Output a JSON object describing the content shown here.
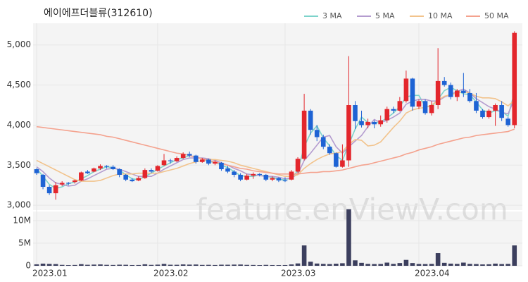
{
  "chart_data": {
    "type": "candlestick",
    "title": "에이에프더블류(312610)",
    "watermark": "feature.enViewV.com",
    "up_color": "#e3262c",
    "down_color": "#1e63d4",
    "xticks": [
      {
        "value": 0,
        "label": "2023.01"
      },
      {
        "value": 19,
        "label": "2023.02"
      },
      {
        "value": 39,
        "label": "2023.03"
      },
      {
        "value": 60,
        "label": "2023.04"
      }
    ],
    "ylim": [
      2940,
      5270
    ],
    "yticks": [
      {
        "value": 3000,
        "label": "3,000"
      },
      {
        "value": 3500,
        "label": "3,500"
      },
      {
        "value": 4000,
        "label": "4,000"
      },
      {
        "value": 4500,
        "label": "4,500"
      },
      {
        "value": 5000,
        "label": "5,000"
      }
    ],
    "open": [
      3450,
      3380,
      3230,
      3150,
      3260,
      3280,
      3290,
      3310,
      3420,
      3420,
      3460,
      3490,
      3480,
      3450,
      3380,
      3320,
      3310,
      3340,
      3440,
      3430,
      3500,
      3560,
      3550,
      3590,
      3640,
      3620,
      3540,
      3570,
      3520,
      3530,
      3460,
      3420,
      3380,
      3320,
      3370,
      3390,
      3380,
      3320,
      3340,
      3310,
      3320,
      3420,
      3580,
      4180,
      3940,
      3850,
      3730,
      3650,
      3480,
      3560,
      4250,
      4050,
      4000,
      4040,
      4010,
      4060,
      4200,
      4180,
      4300,
      4580,
      4230,
      4300,
      4150,
      4250,
      4550,
      4500,
      4350,
      4430,
      4400,
      4300,
      4180,
      4100,
      4180,
      4250,
      4080,
      4000
    ],
    "high": [
      3460,
      3390,
      3250,
      3290,
      3300,
      3290,
      3320,
      3420,
      3440,
      3470,
      3510,
      3500,
      3500,
      3460,
      3390,
      3340,
      3360,
      3460,
      3460,
      3500,
      3640,
      3580,
      3610,
      3660,
      3670,
      3630,
      3590,
      3580,
      3560,
      3540,
      3490,
      3440,
      3400,
      3390,
      3410,
      3400,
      3390,
      3360,
      3350,
      3350,
      3440,
      3600,
      4390,
      4200,
      4000,
      3880,
      3760,
      3660,
      3760,
      4860,
      4300,
      4180,
      4080,
      4060,
      4120,
      4230,
      4230,
      4350,
      4680,
      4590,
      4320,
      4320,
      4300,
      4960,
      4600,
      4530,
      4450,
      4650,
      4450,
      4400,
      4200,
      4200,
      4270,
      4300,
      4100,
      5170
    ],
    "low": [
      3380,
      3200,
      3130,
      3070,
      3240,
      3250,
      3270,
      3300,
      3390,
      3410,
      3440,
      3460,
      3440,
      3350,
      3300,
      3290,
      3300,
      3330,
      3400,
      3420,
      3490,
      3520,
      3540,
      3580,
      3600,
      3520,
      3530,
      3500,
      3500,
      3430,
      3400,
      3350,
      3300,
      3310,
      3330,
      3360,
      3300,
      3300,
      3290,
      3290,
      3310,
      3400,
      3560,
      3880,
      3800,
      3700,
      3630,
      3470,
      3470,
      3480,
      3950,
      3970,
      3960,
      3960,
      3980,
      4030,
      4150,
      4170,
      4280,
      4180,
      4200,
      4130,
      4120,
      4200,
      4480,
      4320,
      4300,
      4350,
      4280,
      4150,
      4080,
      4080,
      3990,
      4050,
      3980,
      3960
    ],
    "close": [
      3400,
      3230,
      3150,
      3250,
      3280,
      3270,
      3310,
      3410,
      3400,
      3460,
      3490,
      3480,
      3450,
      3380,
      3320,
      3300,
      3340,
      3440,
      3420,
      3490,
      3560,
      3550,
      3590,
      3640,
      3620,
      3540,
      3570,
      3520,
      3540,
      3450,
      3420,
      3380,
      3320,
      3370,
      3390,
      3380,
      3320,
      3340,
      3310,
      3300,
      3420,
      3580,
      4180,
      3940,
      3850,
      3730,
      3650,
      3480,
      3560,
      4250,
      4050,
      4000,
      4040,
      4010,
      4060,
      4200,
      4180,
      4300,
      4580,
      4230,
      4300,
      4150,
      4250,
      4550,
      4500,
      4350,
      4430,
      4400,
      4300,
      4180,
      4100,
      4180,
      4250,
      4090,
      4000,
      5150
    ],
    "legend": "top-right",
    "series": [
      {
        "name": "3 MA",
        "color": "#7dd3cb",
        "values": [
          3460,
          3360,
          3260,
          3210,
          3230,
          3270,
          3290,
          3330,
          3370,
          3420,
          3450,
          3480,
          3470,
          3440,
          3380,
          3330,
          3320,
          3360,
          3400,
          3450,
          3490,
          3530,
          3570,
          3590,
          3620,
          3600,
          3580,
          3540,
          3540,
          3500,
          3470,
          3420,
          3370,
          3360,
          3360,
          3380,
          3360,
          3350,
          3320,
          3320,
          3340,
          3430,
          3730,
          3900,
          3990,
          3840,
          3740,
          3620,
          3560,
          3760,
          3950,
          4100,
          4030,
          4020,
          4040,
          4090,
          4150,
          4230,
          4350,
          4370,
          4370,
          4230,
          4230,
          4320,
          4430,
          4470,
          4430,
          4390,
          4380,
          4290,
          4190,
          4150,
          4180,
          4170,
          4110,
          4410
        ]
      },
      {
        "name": "5 MA",
        "color": "#b49ccf",
        "values": [
          3480,
          3420,
          3340,
          3280,
          3260,
          3240,
          3250,
          3300,
          3330,
          3370,
          3410,
          3450,
          3460,
          3450,
          3420,
          3390,
          3360,
          3360,
          3360,
          3400,
          3450,
          3490,
          3530,
          3570,
          3590,
          3590,
          3590,
          3580,
          3560,
          3530,
          3500,
          3460,
          3430,
          3390,
          3380,
          3370,
          3360,
          3360,
          3350,
          3330,
          3340,
          3390,
          3560,
          3650,
          3750,
          3850,
          3870,
          3730,
          3650,
          3730,
          3800,
          3870,
          3980,
          4070,
          4030,
          4060,
          4100,
          4150,
          4260,
          4300,
          4320,
          4320,
          4300,
          4300,
          4350,
          4380,
          4420,
          4450,
          4400,
          4330,
          4280,
          4230,
          4200,
          4160,
          4140,
          4330
        ]
      },
      {
        "name": "10 MA",
        "color": "#f2c38c",
        "values": [
          3560,
          3520,
          3480,
          3440,
          3400,
          3360,
          3320,
          3300,
          3300,
          3300,
          3310,
          3340,
          3370,
          3390,
          3390,
          3390,
          3400,
          3400,
          3400,
          3400,
          3420,
          3440,
          3460,
          3490,
          3520,
          3540,
          3560,
          3570,
          3570,
          3560,
          3550,
          3530,
          3500,
          3480,
          3460,
          3440,
          3420,
          3400,
          3380,
          3360,
          3360,
          3380,
          3460,
          3520,
          3570,
          3610,
          3640,
          3650,
          3670,
          3760,
          3820,
          3810,
          3740,
          3750,
          3790,
          3880,
          3970,
          4050,
          4150,
          4190,
          4210,
          4220,
          4250,
          4310,
          4360,
          4380,
          4400,
          4420,
          4400,
          4360,
          4340,
          4340,
          4330,
          4290,
          4240,
          4310
        ]
      },
      {
        "name": "50 MA",
        "color": "#f4a28e",
        "values": [
          3980,
          3970,
          3960,
          3950,
          3940,
          3930,
          3920,
          3910,
          3900,
          3890,
          3880,
          3860,
          3850,
          3830,
          3810,
          3790,
          3770,
          3750,
          3730,
          3710,
          3690,
          3670,
          3650,
          3640,
          3620,
          3600,
          3580,
          3560,
          3540,
          3520,
          3500,
          3480,
          3460,
          3450,
          3430,
          3420,
          3410,
          3400,
          3390,
          3390,
          3390,
          3390,
          3400,
          3410,
          3410,
          3420,
          3420,
          3430,
          3440,
          3460,
          3480,
          3500,
          3510,
          3530,
          3550,
          3570,
          3590,
          3610,
          3640,
          3660,
          3690,
          3710,
          3730,
          3760,
          3780,
          3800,
          3820,
          3840,
          3850,
          3870,
          3880,
          3890,
          3900,
          3910,
          3920,
          3950
        ]
      }
    ],
    "volume": {
      "color": "#3c3f5e",
      "ylim": [
        0,
        12000000
      ],
      "yticks": [
        0,
        {
          "value": 5000000,
          "label": "5M"
        },
        {
          "value": 10000000,
          "label": "10M"
        }
      ],
      "values": [
        320000,
        480000,
        420000,
        380000,
        200000,
        150000,
        180000,
        360000,
        220000,
        260000,
        300000,
        210000,
        180000,
        240000,
        220000,
        160000,
        170000,
        330000,
        200000,
        250000,
        420000,
        230000,
        220000,
        300000,
        260000,
        280000,
        190000,
        210000,
        170000,
        240000,
        230000,
        260000,
        280000,
        200000,
        180000,
        150000,
        200000,
        160000,
        150000,
        160000,
        300000,
        520000,
        4500000,
        900000,
        500000,
        420000,
        380000,
        460000,
        560000,
        12500000,
        1200000,
        650000,
        420000,
        380000,
        400000,
        700000,
        420000,
        600000,
        1300000,
        600000,
        400000,
        380000,
        420000,
        2800000,
        650000,
        480000,
        420000,
        700000,
        420000,
        380000,
        300000,
        330000,
        480000,
        380000,
        420000,
        4500000
      ]
    }
  }
}
